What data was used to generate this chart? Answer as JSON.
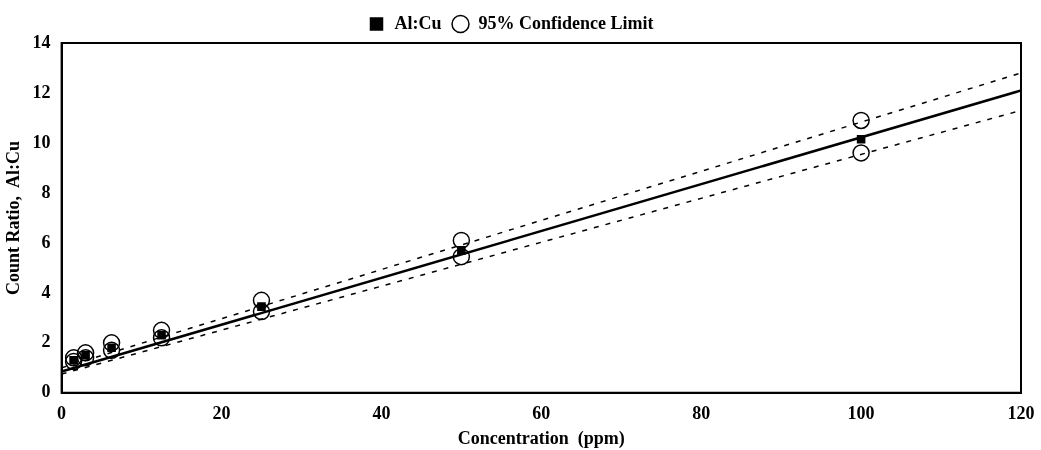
{
  "chart_data": {
    "type": "scatter",
    "xlabel": "Concentration  (ppm)",
    "ylabel": "Count Ratio,  Al:Cu",
    "xlim": [
      0,
      120
    ],
    "ylim": [
      0,
      14
    ],
    "xticks": [
      0,
      20,
      40,
      60,
      80,
      100,
      120
    ],
    "yticks": [
      0,
      2,
      4,
      6,
      8,
      10,
      12,
      14
    ],
    "grid": false,
    "legend": "top",
    "series": [
      {
        "name": "Al:Cu",
        "type": "scatter",
        "marker": "square",
        "color": "#000000",
        "x": [
          1.5,
          3,
          6.25,
          12.5,
          25,
          50,
          100
        ],
        "values": [
          1.3,
          1.5,
          1.8,
          2.3,
          3.45,
          5.7,
          10.15
        ]
      },
      {
        "name": "95% Confidence Limit",
        "type": "scatter",
        "marker": "circle",
        "color": "#000000",
        "x": [
          1.5,
          3,
          6.25,
          12.5,
          25,
          50,
          100,
          1.5,
          3,
          6.25,
          12.5,
          25,
          50,
          100
        ],
        "values": [
          1.4,
          1.6,
          2.0,
          2.5,
          3.7,
          6.1,
          10.9,
          1.25,
          1.4,
          1.7,
          2.2,
          3.25,
          5.45,
          9.6
        ]
      },
      {
        "type": "line",
        "marker": "none",
        "line_style": "solid",
        "color": "#000000",
        "x": [
          0,
          120
        ],
        "values": [
          0.85,
          12.1
        ]
      },
      {
        "type": "line",
        "marker": "none",
        "line_style": "dashed",
        "color": "#000000",
        "x": [
          0,
          120
        ],
        "values": [
          1.0,
          12.8
        ]
      },
      {
        "type": "line",
        "marker": "none",
        "line_style": "dashed",
        "color": "#000000",
        "x": [
          0,
          120
        ],
        "values": [
          0.75,
          11.3
        ]
      }
    ]
  }
}
